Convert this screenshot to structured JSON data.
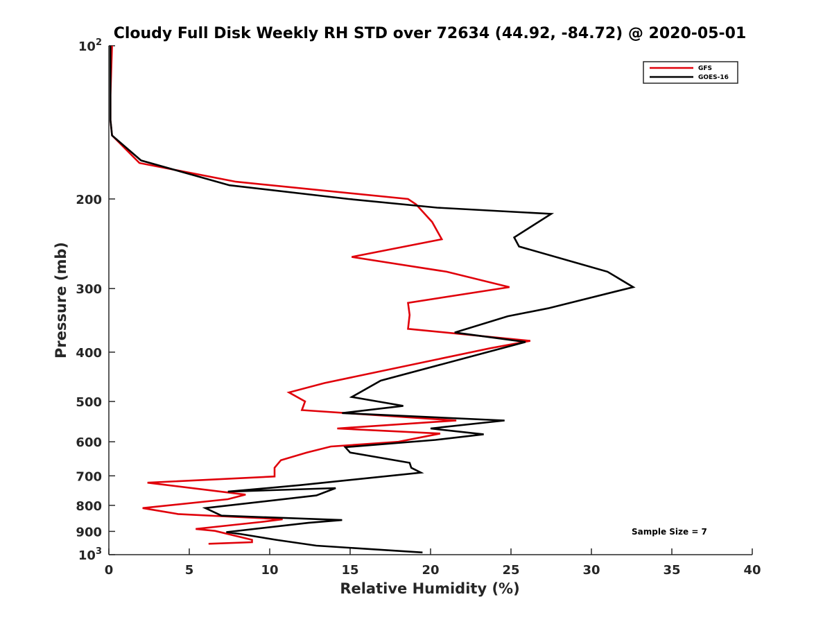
{
  "chart_data": {
    "type": "line",
    "title": "Cloudy Full Disk Weekly RH STD over 72634 (44.92, -84.72) @ 2020-05-01",
    "xlabel": "Relative Humidity (%)",
    "ylabel": "Pressure (mb)",
    "xlim": [
      0,
      40
    ],
    "ylim": [
      100,
      1000
    ],
    "y_scale": "log",
    "y_reversed": true,
    "grid": false,
    "legend_position": "top-right",
    "x_ticks": [
      0,
      5,
      10,
      15,
      20,
      25,
      30,
      35,
      40
    ],
    "y_ticks": [
      {
        "value": 100,
        "label": "10",
        "sup": "2"
      },
      {
        "value": 200,
        "label": "200",
        "sup": ""
      },
      {
        "value": 300,
        "label": "300",
        "sup": ""
      },
      {
        "value": 400,
        "label": "400",
        "sup": ""
      },
      {
        "value": 500,
        "label": "500",
        "sup": ""
      },
      {
        "value": 600,
        "label": "600",
        "sup": ""
      },
      {
        "value": 700,
        "label": "700",
        "sup": ""
      },
      {
        "value": 800,
        "label": "800",
        "sup": ""
      },
      {
        "value": 900,
        "label": "900",
        "sup": ""
      },
      {
        "value": 1000,
        "label": "10",
        "sup": "3"
      }
    ],
    "series": [
      {
        "name": "GFS",
        "color": "#e0000a",
        "points": [
          [
            0.2,
            100
          ],
          [
            0.1,
            125
          ],
          [
            0.1,
            140
          ],
          [
            0.2,
            150
          ],
          [
            1.9,
            170
          ],
          [
            7.9,
            185
          ],
          [
            18.6,
            200
          ],
          [
            19.1,
            205
          ],
          [
            20.1,
            222
          ],
          [
            20.7,
            240
          ],
          [
            15.1,
            260
          ],
          [
            21.0,
            278
          ],
          [
            24.9,
            298
          ],
          [
            18.6,
            320
          ],
          [
            18.7,
            338
          ],
          [
            18.6,
            360
          ],
          [
            26.2,
            380
          ],
          [
            23.7,
            393
          ],
          [
            13.4,
            460
          ],
          [
            11.2,
            480
          ],
          [
            12.2,
            500
          ],
          [
            12.0,
            520
          ],
          [
            21.6,
            545
          ],
          [
            14.2,
            565
          ],
          [
            20.6,
            578
          ],
          [
            18.0,
            600
          ],
          [
            13.8,
            613
          ],
          [
            12.3,
            630
          ],
          [
            10.7,
            652
          ],
          [
            10.3,
            675
          ],
          [
            10.3,
            702
          ],
          [
            2.4,
            722
          ],
          [
            8.5,
            762
          ],
          [
            7.4,
            778
          ],
          [
            2.1,
            810
          ],
          [
            4.3,
            832
          ],
          [
            10.8,
            852
          ],
          [
            9.4,
            863
          ],
          [
            5.4,
            890
          ],
          [
            6.6,
            898
          ],
          [
            8.9,
            935
          ],
          [
            8.9,
            945
          ],
          [
            6.2,
            952
          ]
        ]
      },
      {
        "name": "GOES-16",
        "color": "#000000",
        "points": [
          [
            0.1,
            100
          ],
          [
            0.1,
            125
          ],
          [
            0.1,
            140
          ],
          [
            0.2,
            150
          ],
          [
            2.0,
            168
          ],
          [
            7.5,
            188
          ],
          [
            14.9,
            200
          ],
          [
            20.4,
            208
          ],
          [
            27.5,
            214
          ],
          [
            25.2,
            238
          ],
          [
            25.5,
            248
          ],
          [
            31.0,
            278
          ],
          [
            32.6,
            298
          ],
          [
            27.3,
            328
          ],
          [
            24.8,
            340
          ],
          [
            21.5,
            366
          ],
          [
            25.9,
            382
          ],
          [
            16.9,
            455
          ],
          [
            15.1,
            490
          ],
          [
            18.3,
            510
          ],
          [
            14.5,
            527
          ],
          [
            24.6,
            545
          ],
          [
            20.0,
            565
          ],
          [
            23.3,
            580
          ],
          [
            20.3,
            595
          ],
          [
            14.7,
            615
          ],
          [
            15.0,
            630
          ],
          [
            18.7,
            660
          ],
          [
            18.8,
            675
          ],
          [
            19.4,
            690
          ],
          [
            11.9,
            730
          ],
          [
            7.4,
            752
          ],
          [
            14.1,
            740
          ],
          [
            12.9,
            765
          ],
          [
            6.0,
            810
          ],
          [
            7.0,
            838
          ],
          [
            14.5,
            855
          ],
          [
            12.4,
            866
          ],
          [
            7.3,
            903
          ],
          [
            8.1,
            910
          ],
          [
            10.4,
            935
          ],
          [
            12.9,
            960
          ],
          [
            19.5,
            990
          ]
        ]
      }
    ],
    "annotations": [
      "Sample Size = 7"
    ]
  }
}
